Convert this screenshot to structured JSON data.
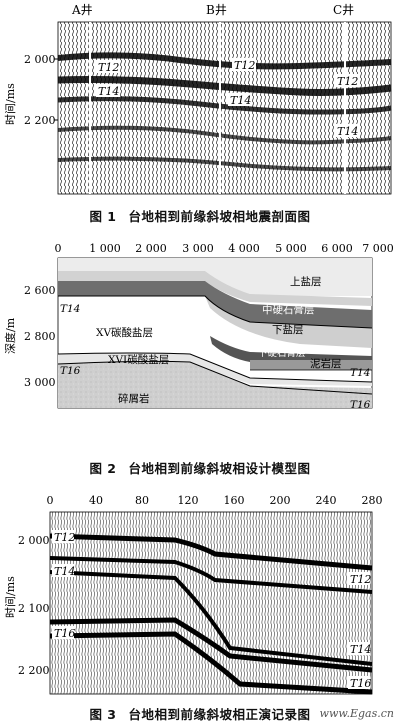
{
  "figures": [
    {
      "caption_number": "图 1",
      "caption_text": "台地相到前缘斜坡相地震剖面图",
      "well_labels": [
        "A井",
        "B井",
        "C井"
      ],
      "y_axis_label": "时间/ms",
      "y_ticks": [
        "2 000",
        "2 200"
      ],
      "horizon_labels": [
        "T12",
        "T14",
        "T12",
        "T14",
        "T12",
        "T14"
      ]
    },
    {
      "caption_number": "图 2",
      "caption_text": "台地相到前缘斜坡相设计模型图",
      "x_ticks": [
        "0",
        "1 000",
        "2 000",
        "3 000",
        "4 000",
        "5 000",
        "6 000",
        "7 000"
      ],
      "y_axis_label": "深度/m",
      "y_ticks": [
        "2 600",
        "2 800",
        "3 000"
      ],
      "layer_labels": [
        "上盐层",
        "中硬石膏层",
        "下盐层",
        "XV碳酸盐层",
        "下硬石膏层",
        "泥岩层",
        "XVI碳酸盐层",
        "碎屑岩"
      ],
      "horizon_labels": [
        "T14",
        "T16",
        "T14",
        "T16"
      ]
    },
    {
      "caption_number": "图 3",
      "caption_text": "台地相到前缘斜坡相正演记录图",
      "x_ticks": [
        "0",
        "40",
        "80",
        "120",
        "160",
        "200",
        "240",
        "280"
      ],
      "y_axis_label": "时间/ms",
      "y_ticks": [
        "2 000",
        "2 100",
        "2 200"
      ],
      "horizon_labels": [
        "T12",
        "T14",
        "T12",
        "T14",
        "T16",
        "T16"
      ]
    }
  ],
  "watermark": "www.Egas.cn"
}
